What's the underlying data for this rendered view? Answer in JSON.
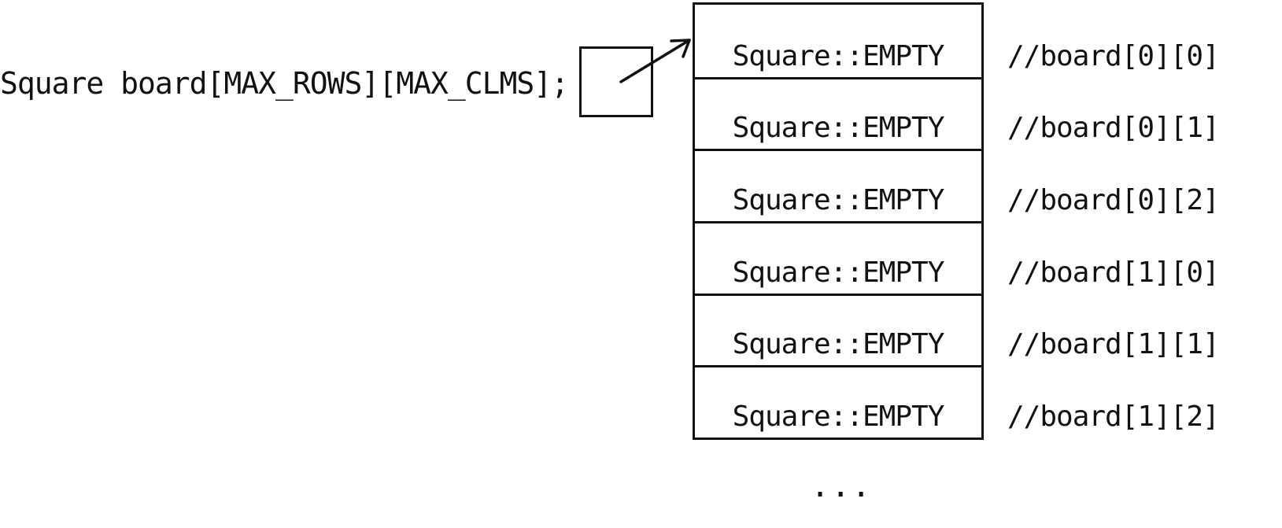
{
  "declaration": "Square board[MAX_ROWS][MAX_CLMS];",
  "cells": [
    {
      "value": "Square::EMPTY",
      "comment": "//board[0][0]"
    },
    {
      "value": "Square::EMPTY",
      "comment": "//board[0][1]"
    },
    {
      "value": "Square::EMPTY",
      "comment": "//board[0][2]"
    },
    {
      "value": "Square::EMPTY",
      "comment": "//board[1][0]"
    },
    {
      "value": "Square::EMPTY",
      "comment": "//board[1][1]"
    },
    {
      "value": "Square::EMPTY",
      "comment": "//board[1][2]"
    }
  ],
  "ellipsis": "...",
  "colors": {
    "ink": "#111111",
    "background": "#ffffff"
  },
  "icons": {
    "pointer": "arrow-icon"
  }
}
